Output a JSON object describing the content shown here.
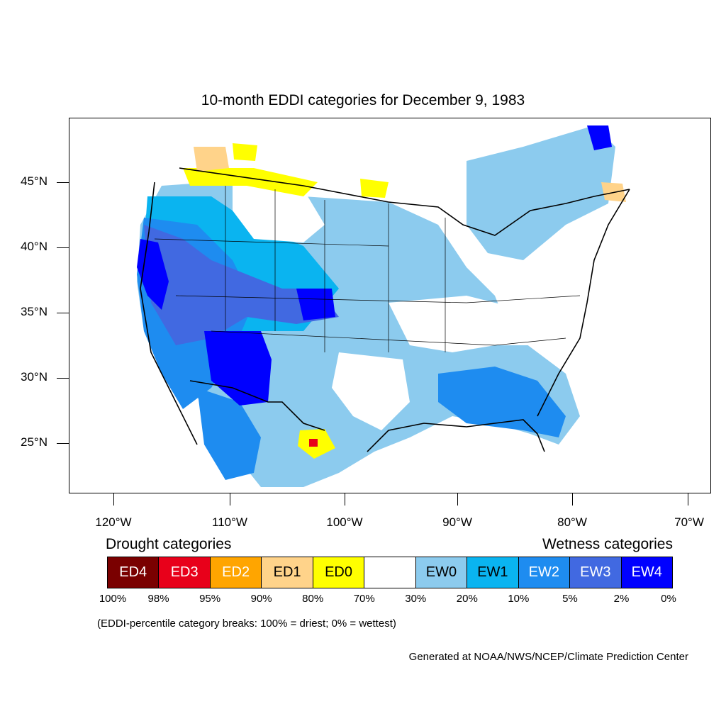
{
  "title": "10-month EDDI categories for December 9, 1983",
  "axes": {
    "lat_labels": [
      "45°N",
      "40°N",
      "35°N",
      "30°N",
      "25°N"
    ],
    "lon_labels": [
      "120°W",
      "110°W",
      "100°W",
      "90°W",
      "80°W",
      "70°W"
    ]
  },
  "legend": {
    "drought_heading": "Drought categories",
    "wetness_heading": "Wetness categories",
    "categories": [
      {
        "label": "ED4",
        "color": "#7a0000",
        "text_color": "#ffffff"
      },
      {
        "label": "ED3",
        "color": "#e8001a",
        "text_color": "#ffffff"
      },
      {
        "label": "ED2",
        "color": "#ffa500",
        "text_color": "#ffffff"
      },
      {
        "label": "ED1",
        "color": "#ffd38a",
        "text_color": "#000000"
      },
      {
        "label": "ED0",
        "color": "#ffff00",
        "text_color": "#000000"
      },
      {
        "label": "",
        "color": "#ffffff",
        "text_color": "#000000"
      },
      {
        "label": "EW0",
        "color": "#8ccbee",
        "text_color": "#000000"
      },
      {
        "label": "EW1",
        "color": "#0ab4f0",
        "text_color": "#000000"
      },
      {
        "label": "EW2",
        "color": "#1e8cf0",
        "text_color": "#ffffff"
      },
      {
        "label": "EW3",
        "color": "#4169e1",
        "text_color": "#ffffff"
      },
      {
        "label": "EW4",
        "color": "#0000ff",
        "text_color": "#ffffff"
      }
    ],
    "percentiles": [
      "100%",
      "98%",
      "95%",
      "90%",
      "80%",
      "70%",
      "30%",
      "20%",
      "10%",
      "5%",
      "2%",
      "0%"
    ]
  },
  "breaks_note": "(EDDI-percentile category breaks: 100% = driest; 0% = wettest)",
  "credit": "Generated at NOAA/NWS/NCEP/Climate Prediction Center"
}
